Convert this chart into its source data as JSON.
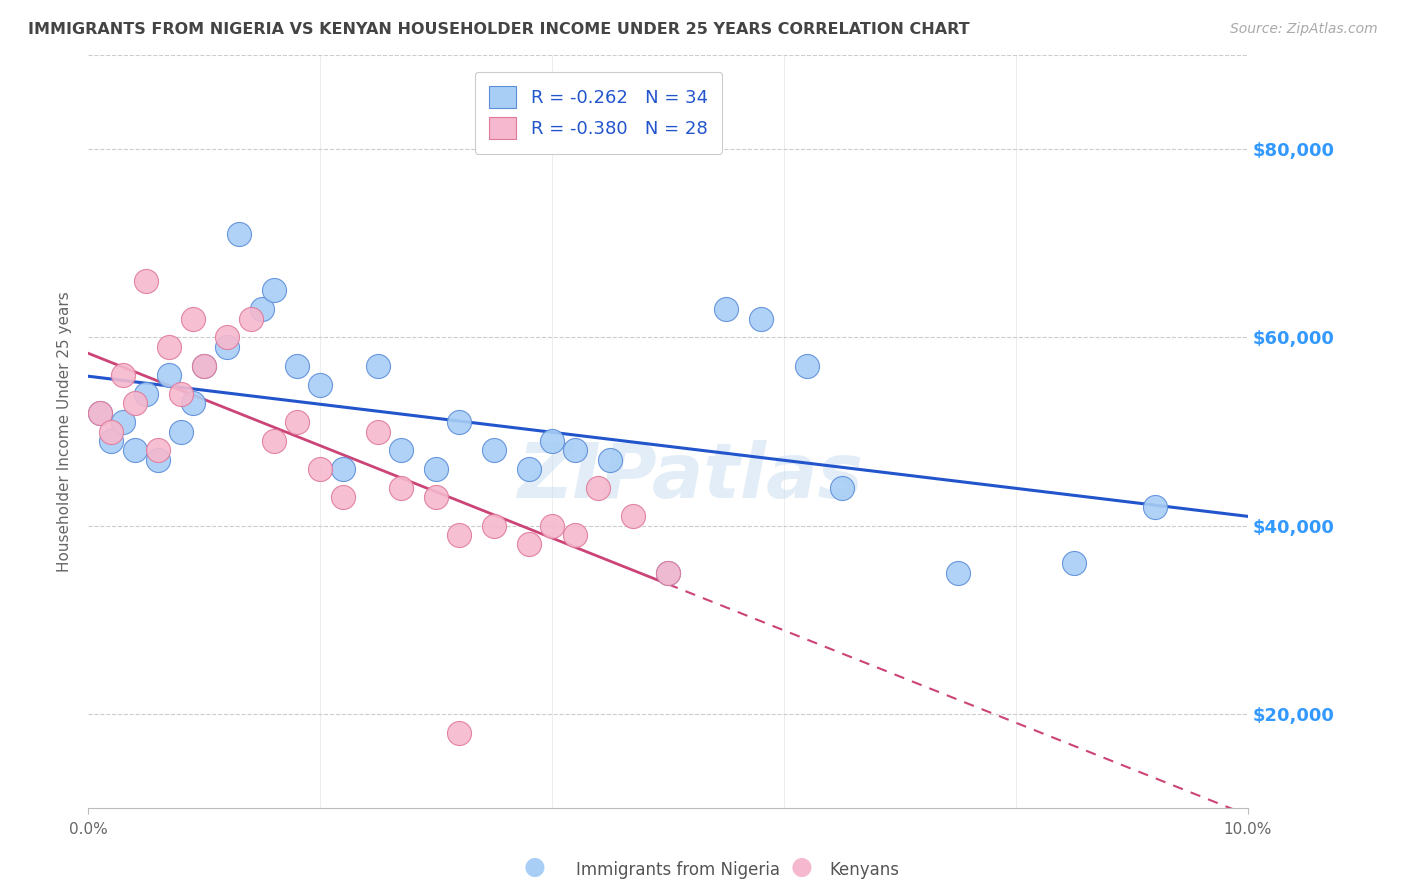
{
  "title": "IMMIGRANTS FROM NIGERIA VS KENYAN HOUSEHOLDER INCOME UNDER 25 YEARS CORRELATION CHART",
  "source": "Source: ZipAtlas.com",
  "ylabel": "Householder Income Under 25 years",
  "legend_label1": "Immigrants from Nigeria",
  "legend_label2": "Kenyans",
  "r1": "-0.262",
  "n1": "34",
  "r2": "-0.380",
  "n2": "28",
  "nigeria_x": [
    0.001,
    0.002,
    0.003,
    0.004,
    0.005,
    0.006,
    0.007,
    0.008,
    0.009,
    0.01,
    0.012,
    0.013,
    0.015,
    0.016,
    0.018,
    0.02,
    0.022,
    0.025,
    0.027,
    0.03,
    0.032,
    0.035,
    0.038,
    0.04,
    0.042,
    0.045,
    0.05,
    0.055,
    0.058,
    0.062,
    0.065,
    0.075,
    0.085,
    0.092
  ],
  "nigeria_y": [
    52000,
    49000,
    51000,
    48000,
    54000,
    47000,
    56000,
    50000,
    53000,
    57000,
    59000,
    71000,
    63000,
    65000,
    57000,
    55000,
    46000,
    57000,
    48000,
    46000,
    51000,
    48000,
    46000,
    49000,
    48000,
    47000,
    35000,
    63000,
    62000,
    57000,
    44000,
    35000,
    36000,
    42000
  ],
  "kenya_x": [
    0.001,
    0.002,
    0.003,
    0.004,
    0.005,
    0.006,
    0.007,
    0.008,
    0.009,
    0.01,
    0.012,
    0.014,
    0.016,
    0.018,
    0.02,
    0.022,
    0.025,
    0.027,
    0.03,
    0.032,
    0.035,
    0.038,
    0.04,
    0.042,
    0.044,
    0.047,
    0.05,
    0.032
  ],
  "kenya_y": [
    52000,
    50000,
    56000,
    53000,
    66000,
    48000,
    59000,
    54000,
    62000,
    57000,
    60000,
    62000,
    49000,
    51000,
    46000,
    43000,
    50000,
    44000,
    43000,
    39000,
    40000,
    38000,
    40000,
    39000,
    44000,
    41000,
    35000,
    18000
  ],
  "y_ticks": [
    20000,
    40000,
    60000,
    80000
  ],
  "y_tick_labels": [
    "$20,000",
    "$40,000",
    "$60,000",
    "$80,000"
  ],
  "xlim": [
    0.0,
    0.1
  ],
  "ylim": [
    10000,
    90000
  ],
  "blue_dot_color": "#a8cef5",
  "blue_dot_edge": "#5b8dd9",
  "pink_dot_color": "#f5b8ce",
  "pink_dot_edge": "#e07a99",
  "blue_line_color": "#2255cc",
  "pink_line_color": "#cc4477",
  "right_label_color": "#3399ff",
  "grid_color": "#cccccc",
  "title_color": "#444444",
  "watermark": "ZIPatlas"
}
